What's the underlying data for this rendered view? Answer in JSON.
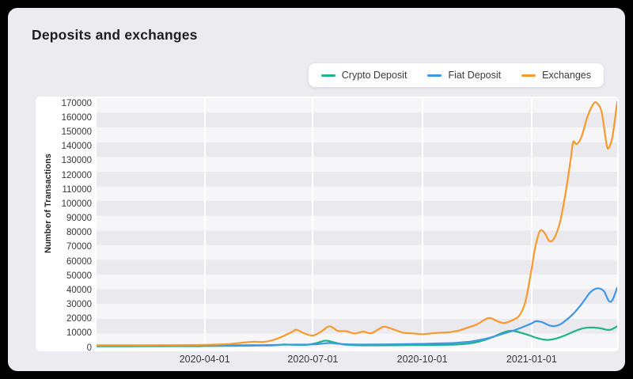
{
  "title": "Deposits and exchanges",
  "legend": {
    "items": [
      {
        "label": "Crypto Deposit",
        "color": "#1fb488"
      },
      {
        "label": "Fiat Deposit",
        "color": "#3e97e8"
      },
      {
        "label": "Exchanges",
        "color": "#f89a2b"
      }
    ]
  },
  "colors": {
    "frame": "#000000",
    "card_background": "#ebebf0",
    "panel_background": "#ffffff",
    "band_light": "#f6f6f9",
    "band_dark": "#e9e9ee",
    "vertical_gridline": "#ffffff",
    "axis_text": "#38383d",
    "title_text": "#1d1d21"
  },
  "chart_data": {
    "type": "line",
    "title": "Deposits and exchanges",
    "xlabel": "",
    "ylabel": "Number of Transactions",
    "x_unit": "days since 2020-01-01",
    "x_domain": [
      0,
      438
    ],
    "ylim": [
      0,
      174000
    ],
    "grid": "striped horizontal bands, white vertical lines at quarter starts",
    "legend_position": "top-right",
    "yticks": [
      0,
      10000,
      20000,
      30000,
      40000,
      50000,
      60000,
      70000,
      80000,
      90000,
      100000,
      110000,
      120000,
      130000,
      140000,
      150000,
      160000,
      170000
    ],
    "xticks": [
      {
        "day": 91,
        "label": "2020-04-01"
      },
      {
        "day": 182,
        "label": "2020-07-01"
      },
      {
        "day": 274,
        "label": "2020-10-01"
      },
      {
        "day": 366,
        "label": "2021-01-01"
      }
    ],
    "series": [
      {
        "name": "Crypto Deposit",
        "color": "#1fb488",
        "points": [
          [
            0,
            1300
          ],
          [
            28,
            1300
          ],
          [
            56,
            1400
          ],
          [
            84,
            1400
          ],
          [
            91,
            1500
          ],
          [
            112,
            1600
          ],
          [
            140,
            1800
          ],
          [
            150,
            2000
          ],
          [
            158,
            2600
          ],
          [
            165,
            2300
          ],
          [
            172,
            2200
          ],
          [
            178,
            2400
          ],
          [
            185,
            3500
          ],
          [
            191,
            5000
          ],
          [
            194,
            5200
          ],
          [
            199,
            4200
          ],
          [
            206,
            2800
          ],
          [
            213,
            2200
          ],
          [
            224,
            1900
          ],
          [
            238,
            1900
          ],
          [
            252,
            2000
          ],
          [
            266,
            2100
          ],
          [
            274,
            2100
          ],
          [
            288,
            2200
          ],
          [
            302,
            2500
          ],
          [
            310,
            2900
          ],
          [
            318,
            3800
          ],
          [
            326,
            5500
          ],
          [
            334,
            8000
          ],
          [
            341,
            10500
          ],
          [
            347,
            12000
          ],
          [
            352,
            11800
          ],
          [
            358,
            10500
          ],
          [
            364,
            9000
          ],
          [
            370,
            7200
          ],
          [
            376,
            6000
          ],
          [
            381,
            5800
          ],
          [
            387,
            6800
          ],
          [
            393,
            8500
          ],
          [
            400,
            11000
          ],
          [
            406,
            13000
          ],
          [
            412,
            14200
          ],
          [
            418,
            14300
          ],
          [
            424,
            13800
          ],
          [
            429,
            12800
          ],
          [
            433,
            13000
          ],
          [
            438,
            15200
          ]
        ]
      },
      {
        "name": "Fiat Deposit",
        "color": "#3e97e8",
        "points": [
          [
            0,
            1800
          ],
          [
            28,
            1800
          ],
          [
            56,
            1800
          ],
          [
            84,
            1900
          ],
          [
            91,
            1900
          ],
          [
            112,
            2000
          ],
          [
            140,
            2100
          ],
          [
            154,
            2300
          ],
          [
            168,
            2500
          ],
          [
            182,
            2600
          ],
          [
            189,
            3100
          ],
          [
            196,
            3600
          ],
          [
            203,
            3100
          ],
          [
            210,
            2700
          ],
          [
            224,
            2500
          ],
          [
            238,
            2600
          ],
          [
            252,
            2700
          ],
          [
            266,
            2900
          ],
          [
            274,
            3000
          ],
          [
            288,
            3300
          ],
          [
            302,
            3700
          ],
          [
            310,
            4200
          ],
          [
            318,
            5000
          ],
          [
            326,
            6300
          ],
          [
            334,
            8000
          ],
          [
            341,
            9800
          ],
          [
            348,
            11500
          ],
          [
            355,
            13500
          ],
          [
            361,
            15500
          ],
          [
            366,
            17200
          ],
          [
            370,
            18800
          ],
          [
            375,
            18000
          ],
          [
            381,
            15800
          ],
          [
            385,
            15300
          ],
          [
            390,
            16500
          ],
          [
            395,
            19500
          ],
          [
            400,
            23000
          ],
          [
            406,
            28500
          ],
          [
            411,
            34000
          ],
          [
            415,
            38500
          ],
          [
            419,
            41000
          ],
          [
            423,
            41500
          ],
          [
            427,
            39500
          ],
          [
            431,
            32800
          ],
          [
            434,
            33500
          ],
          [
            438,
            42000
          ]
        ]
      },
      {
        "name": "Exchanges",
        "color": "#f89a2b",
        "points": [
          [
            0,
            2000
          ],
          [
            14,
            2000
          ],
          [
            28,
            2000
          ],
          [
            42,
            2000
          ],
          [
            56,
            2100
          ],
          [
            70,
            2100
          ],
          [
            84,
            2200
          ],
          [
            91,
            2300
          ],
          [
            100,
            2500
          ],
          [
            112,
            2900
          ],
          [
            126,
            4100
          ],
          [
            133,
            4500
          ],
          [
            140,
            4300
          ],
          [
            148,
            5500
          ],
          [
            156,
            8000
          ],
          [
            165,
            11500
          ],
          [
            168,
            12800
          ],
          [
            175,
            10200
          ],
          [
            182,
            8800
          ],
          [
            189,
            11500
          ],
          [
            196,
            15200
          ],
          [
            203,
            12000
          ],
          [
            210,
            11800
          ],
          [
            217,
            10200
          ],
          [
            224,
            11500
          ],
          [
            231,
            10400
          ],
          [
            238,
            13500
          ],
          [
            242,
            15000
          ],
          [
            250,
            13000
          ],
          [
            258,
            10800
          ],
          [
            266,
            10300
          ],
          [
            274,
            9700
          ],
          [
            282,
            10300
          ],
          [
            290,
            10800
          ],
          [
            298,
            11200
          ],
          [
            306,
            12500
          ],
          [
            313,
            14500
          ],
          [
            320,
            16500
          ],
          [
            327,
            20000
          ],
          [
            331,
            21000
          ],
          [
            338,
            18500
          ],
          [
            343,
            17500
          ],
          [
            350,
            19500
          ],
          [
            356,
            23000
          ],
          [
            361,
            33000
          ],
          [
            366,
            55000
          ],
          [
            369,
            70000
          ],
          [
            373,
            81500
          ],
          [
            377,
            80000
          ],
          [
            381,
            74500
          ],
          [
            385,
            76500
          ],
          [
            390,
            88000
          ],
          [
            395,
            110000
          ],
          [
            399,
            132000
          ],
          [
            401,
            143500
          ],
          [
            404,
            142000
          ],
          [
            408,
            147000
          ],
          [
            413,
            161000
          ],
          [
            418,
            170000
          ],
          [
            421,
            170500
          ],
          [
            425,
            164000
          ],
          [
            429,
            142000
          ],
          [
            431,
            139500
          ],
          [
            434,
            147000
          ],
          [
            438,
            171000
          ]
        ]
      }
    ]
  }
}
